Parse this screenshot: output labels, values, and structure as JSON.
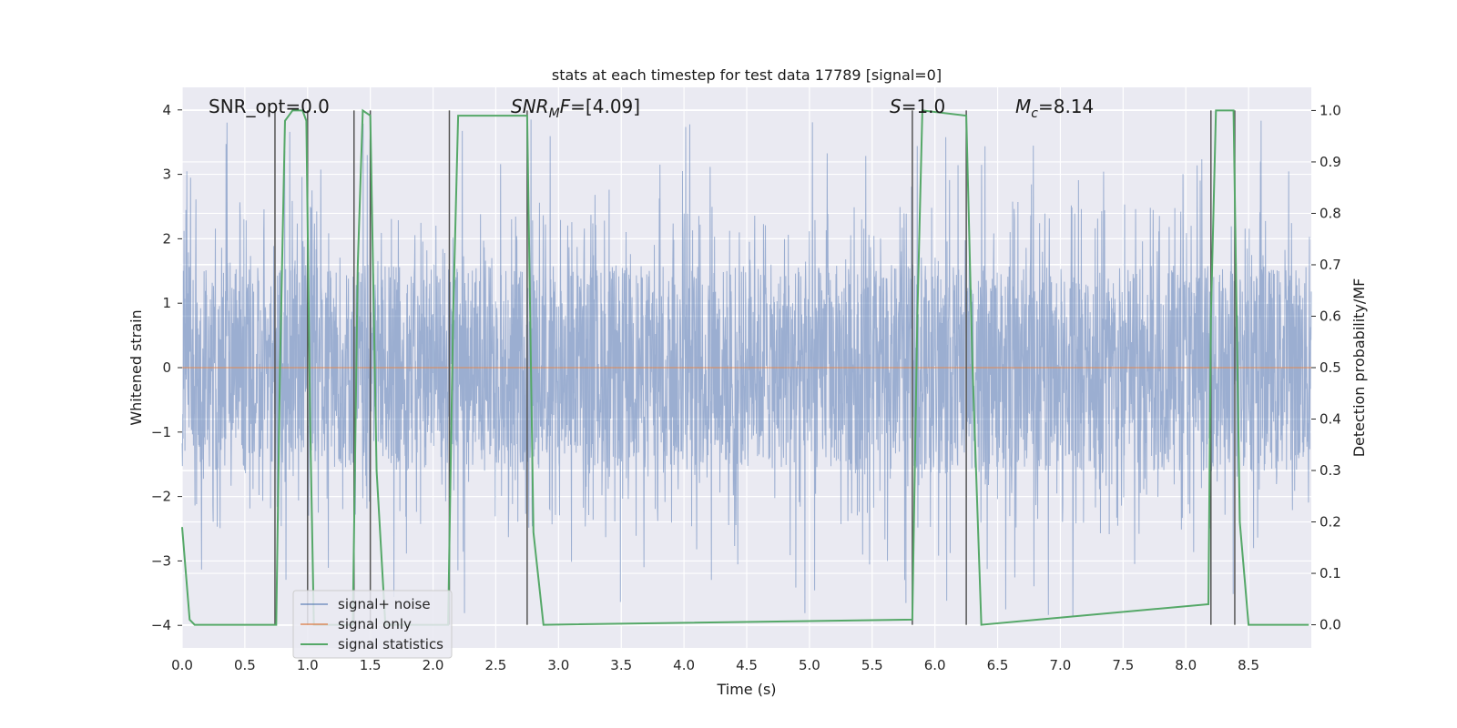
{
  "chart_data": {
    "type": "line",
    "title": "stats at each timestep for test data 17789 [signal=0]",
    "xlabel": "Time (s)",
    "ylabel": "Whitened strain",
    "y2label": "Detection probability/MF",
    "xlim": [
      0.0,
      9.0
    ],
    "ylim": [
      -4.35,
      4.35
    ],
    "y2lim": [
      -0.045,
      1.045
    ],
    "xticks": [
      0.0,
      0.5,
      1.0,
      1.5,
      2.0,
      2.5,
      3.0,
      3.5,
      4.0,
      4.5,
      5.0,
      5.5,
      6.0,
      6.5,
      7.0,
      7.5,
      8.0,
      8.5
    ],
    "xtick_labels": [
      "0.0",
      "0.5",
      "1.0",
      "1.5",
      "2.0",
      "2.5",
      "3.0",
      "3.5",
      "4.0",
      "4.5",
      "5.0",
      "5.5",
      "6.0",
      "6.5",
      "7.0",
      "7.5",
      "8.0",
      "8.5"
    ],
    "yticks": [
      -4,
      -3,
      -2,
      -1,
      0,
      1,
      2,
      3,
      4
    ],
    "ytick_labels": [
      "−4",
      "−3",
      "−2",
      "−1",
      "0",
      "1",
      "2",
      "3",
      "4"
    ],
    "y2ticks": [
      0.0,
      0.1,
      0.2,
      0.3,
      0.4,
      0.5,
      0.6,
      0.7,
      0.8,
      0.9,
      1.0
    ],
    "y2tick_labels": [
      "0.0",
      "0.1",
      "0.2",
      "0.3",
      "0.4",
      "0.5",
      "0.6",
      "0.7",
      "0.8",
      "0.9",
      "1.0"
    ],
    "grid": true,
    "legend_position": "lower-left",
    "series": [
      {
        "name": "signal+ noise",
        "color": "#4c72b0",
        "style": "dense noisy strain trace, mostly within ±1.7 with spikes to about ±3.9"
      },
      {
        "name": "signal only",
        "color": "#dd8452",
        "x": [
          0.0,
          9.0
        ],
        "y": [
          0.0,
          0.0
        ]
      },
      {
        "name": "signal statistics",
        "color": "#55a868",
        "axis": "right",
        "x": [
          0.0,
          0.06,
          0.1,
          0.75,
          0.78,
          0.82,
          0.88,
          0.96,
          0.99,
          1.02,
          1.05,
          1.36,
          1.4,
          1.44,
          1.5,
          1.55,
          1.62,
          2.12,
          2.16,
          2.2,
          2.75,
          2.8,
          2.88,
          5.82,
          5.86,
          5.9,
          6.25,
          6.3,
          6.37,
          8.18,
          8.2,
          8.24,
          8.38,
          8.43,
          8.5,
          8.98
        ],
        "y": [
          0.19,
          0.01,
          0.0,
          0.0,
          0.5,
          0.98,
          1.0,
          1.0,
          0.98,
          0.4,
          0.0,
          0.0,
          0.7,
          1.0,
          0.99,
          0.3,
          0.0,
          0.0,
          0.6,
          0.99,
          0.99,
          0.18,
          0.0,
          0.01,
          0.6,
          1.0,
          0.99,
          0.5,
          0.0,
          0.04,
          0.6,
          1.0,
          1.0,
          0.2,
          0.0,
          0.0
        ]
      }
    ],
    "vlines": [
      0.74,
      1.0,
      1.37,
      1.5,
      2.13,
      2.75,
      5.82,
      6.25,
      8.2,
      8.39
    ],
    "vline_color": "#555555",
    "hlines_white": [
      1.6,
      0.8,
      -0.8,
      -1.6
    ],
    "annotations": [
      {
        "text": "SNR_opt=0.0",
        "x": 0.2,
        "y": 4.1
      },
      {
        "text": "=[4.09]",
        "math": "SNR_MF",
        "x": 2.6,
        "y": 4.1
      },
      {
        "text": "=1.0",
        "math": "S",
        "x": 5.6,
        "y": 4.1
      },
      {
        "text": "=8.14",
        "math": "M_c",
        "x": 6.6,
        "y": 4.1
      }
    ]
  }
}
